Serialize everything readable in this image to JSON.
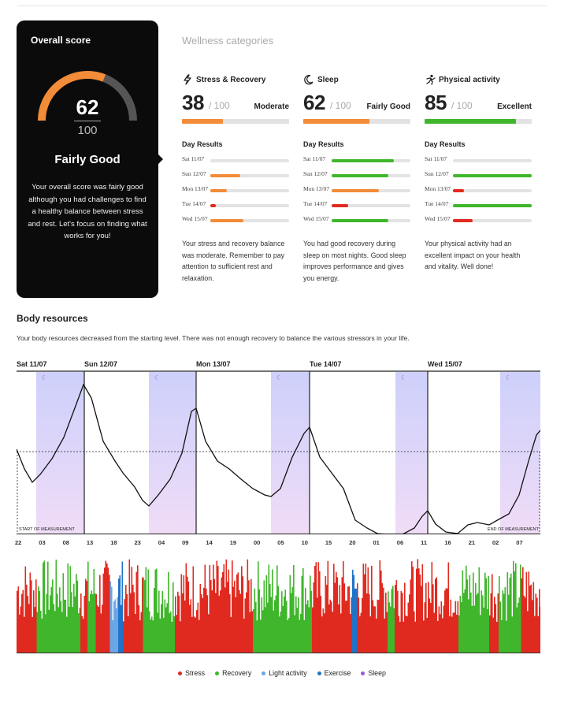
{
  "overall": {
    "title": "Overall score",
    "score": "62",
    "max": "100",
    "rating": "Fairly Good",
    "description": "Your overall score was fairly good although you had challenges to find a healthy balance between stress and rest. Let's focus on finding what works for you!",
    "gauge_fraction": 0.62,
    "gauge_color": "#f28c38"
  },
  "wellness": {
    "heading": "Wellness categories",
    "day_results_label": "Day Results",
    "categories": [
      {
        "name": "Stress & Recovery",
        "icon": "lightning-icon",
        "score": "38",
        "max": "/ 100",
        "rating": "Moderate",
        "fraction": 0.38,
        "color": "#f28c38",
        "days": [
          {
            "label": "Sat 11/07",
            "value": 0,
            "color": "#f28c38"
          },
          {
            "label": "Sun 12/07",
            "value": 0.38,
            "color": "#f28c38"
          },
          {
            "label": "Mon 13/07",
            "value": 0.21,
            "color": "#f28c38"
          },
          {
            "label": "Tue 14/07",
            "value": 0.07,
            "color": "#e02a20"
          },
          {
            "label": "Wed 15/07",
            "value": 0.42,
            "color": "#f28c38"
          }
        ],
        "description": "Your stress and recovery balance was moderate. Remember to pay attention to sufficient rest and relaxation."
      },
      {
        "name": "Sleep",
        "icon": "moon-icon",
        "score": "62",
        "max": "/ 100",
        "rating": "Fairly Good",
        "fraction": 0.62,
        "color": "#f28c38",
        "days": [
          {
            "label": "Sat 11/07",
            "value": 0.79,
            "color": "#3fb62b"
          },
          {
            "label": "Sun 12/07",
            "value": 0.72,
            "color": "#3fb62b"
          },
          {
            "label": "Mon 13/07",
            "value": 0.6,
            "color": "#f28c38"
          },
          {
            "label": "Tue 14/07",
            "value": 0.21,
            "color": "#e02a20"
          },
          {
            "label": "Wed 15/07",
            "value": 0.72,
            "color": "#3fb62b"
          }
        ],
        "description": "You had good recovery during sleep on most nights. Good sleep improves performance and gives you energy."
      },
      {
        "name": "Physical activity",
        "icon": "activity-icon",
        "score": "85",
        "max": "/ 100",
        "rating": "Excellent",
        "fraction": 0.85,
        "color": "#3fb62b",
        "days": [
          {
            "label": "Sat 11/07",
            "value": 0,
            "color": "#3fb62b"
          },
          {
            "label": "Sun 12/07",
            "value": 1.0,
            "color": "#3fb62b"
          },
          {
            "label": "Mon 13/07",
            "value": 0.14,
            "color": "#e02a20"
          },
          {
            "label": "Tue 14/07",
            "value": 1.0,
            "color": "#3fb62b"
          },
          {
            "label": "Wed 15/07",
            "value": 0.25,
            "color": "#e02a20"
          }
        ],
        "description": "Your physical activity had an excellent impact on your health and vitality. Well done!"
      }
    ]
  },
  "body_resources": {
    "title": "Body resources",
    "description": "Your body resources decreased from the starting level. There was not enough recovery to balance the various stressors in your life.",
    "days": [
      "Sat 11/07",
      "Sun 12/07",
      "Mon 13/07",
      "Tue 14/07",
      "Wed 15/07"
    ],
    "hours": [
      "22",
      "03",
      "08",
      "13",
      "18",
      "23",
      "04",
      "09",
      "14",
      "19",
      "00",
      "05",
      "10",
      "15",
      "20",
      "01",
      "06",
      "11",
      "16",
      "21",
      "02",
      "07"
    ],
    "start_label": "START OF MEASUREMENT",
    "end_label": "END OF MEASUREMENT",
    "colors": {
      "stress": "#e02a20",
      "recovery": "#3fb62b",
      "light": "#6aa6e6",
      "exercise": "#1f74c9",
      "sleep": "#9b59d0",
      "sleep_band_top": "#cdd0fb",
      "sleep_band_bottom": "#f0dcf7"
    }
  },
  "legend": [
    {
      "label": "Stress",
      "color": "#e02a20"
    },
    {
      "label": "Recovery",
      "color": "#3fb62b"
    },
    {
      "label": "Light activity",
      "color": "#6aa6e6"
    },
    {
      "label": "Exercise",
      "color": "#1f74c9"
    },
    {
      "label": "Sleep",
      "color": "#9b59d0"
    }
  ]
}
